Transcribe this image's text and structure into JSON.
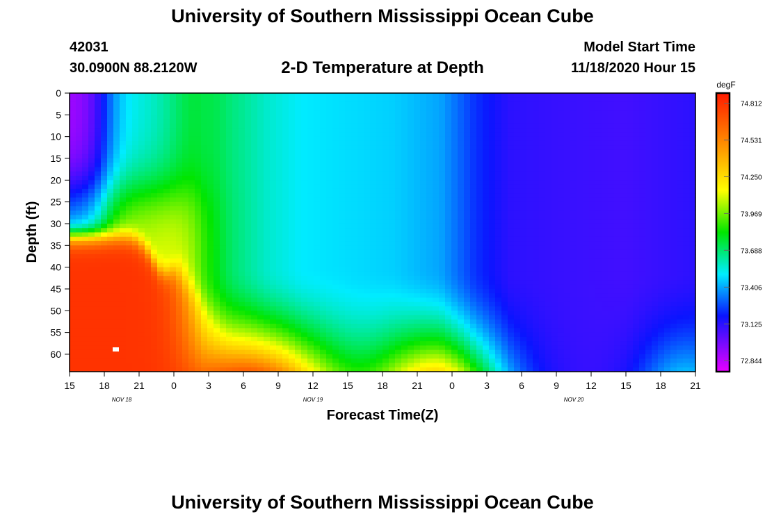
{
  "header": {
    "title_top": "University of Southern Mississippi Ocean Cube",
    "station_id": "42031",
    "station_coords": "30.0900N 88.2120W",
    "model_start_label": "Model Start Time",
    "model_start_value": "11/18/2020 Hour 15"
  },
  "footer": {
    "title_bottom": "University of Southern Mississippi Ocean Cube"
  },
  "chart_data": {
    "type": "heatmap",
    "title": "2-D Temperature at Depth",
    "xlabel": "Forecast Time(Z)",
    "ylabel": "Depth (ft)",
    "x_ticks": [
      "15",
      "18",
      "21",
      "0",
      "3",
      "6",
      "9",
      "12",
      "15",
      "18",
      "21",
      "0",
      "3",
      "6",
      "9",
      "12",
      "15",
      "18",
      "21"
    ],
    "x_range_hours": [
      0,
      54
    ],
    "date_labels": [
      {
        "text": "NOV 18",
        "hour": 4.5
      },
      {
        "text": "NOV 19",
        "hour": 21
      },
      {
        "text": "NOV 20",
        "hour": 43.5
      }
    ],
    "y_ticks": [
      0,
      5,
      10,
      15,
      20,
      25,
      30,
      35,
      40,
      45,
      50,
      55,
      60
    ],
    "y_range": [
      0,
      64
    ],
    "colorbar": {
      "unit": "degF",
      "min": 72.76,
      "max": 74.89,
      "tick_labels": [
        "74.812",
        "74.531",
        "74.250",
        "73.969",
        "73.688",
        "73.406",
        "73.125",
        "72.844"
      ],
      "tick_values": [
        74.812,
        74.531,
        74.25,
        73.969,
        73.688,
        73.406,
        73.125,
        72.844
      ]
    }
  }
}
